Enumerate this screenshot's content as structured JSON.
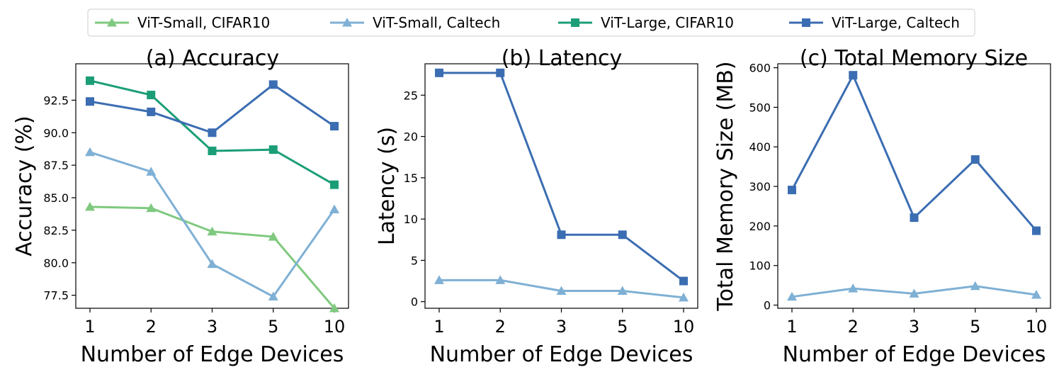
{
  "legend": {
    "placement": "top-center",
    "entries": [
      {
        "name": "ViT-Small, CIFAR10",
        "color": "#7fc97f",
        "marker": "triangle"
      },
      {
        "name": "ViT-Small, Caltech",
        "color": "#7fb0d5",
        "marker": "triangle"
      },
      {
        "name": "ViT-Large, CIFAR10",
        "color": "#1b9e77",
        "marker": "square"
      },
      {
        "name": "ViT-Large, Caltech",
        "color": "#3b6db2",
        "marker": "square"
      }
    ]
  },
  "chart_data": [
    {
      "type": "line",
      "title": "(a) Accuracy",
      "xlabel": "Number of Edge Devices",
      "ylabel": "Accuracy (%)",
      "categories": [
        "1",
        "2",
        "3",
        "5",
        "10"
      ],
      "ylim": [
        76.5,
        95.3
      ],
      "yticks": [
        77.5,
        80.0,
        82.5,
        85.0,
        87.5,
        90.0,
        92.5
      ],
      "ytick_labels": [
        "77.5",
        "80.0",
        "82.5",
        "85.0",
        "87.5",
        "90.0",
        "92.5"
      ],
      "series": [
        {
          "name": "ViT-Small, CIFAR10",
          "values": [
            84.3,
            84.2,
            82.4,
            82.0,
            76.5
          ]
        },
        {
          "name": "ViT-Small, Caltech",
          "values": [
            88.5,
            87.0,
            79.9,
            77.4,
            84.1
          ]
        },
        {
          "name": "ViT-Large, CIFAR10",
          "values": [
            94.0,
            92.9,
            88.6,
            88.7,
            86.0
          ]
        },
        {
          "name": "ViT-Large, Caltech",
          "values": [
            92.4,
            91.6,
            90.0,
            93.7,
            90.5
          ]
        }
      ]
    },
    {
      "type": "line",
      "title": "(b) Latency",
      "xlabel": "Number of Edge Devices",
      "ylabel": "Latency (s)",
      "categories": [
        "1",
        "2",
        "3",
        "5",
        "10"
      ],
      "ylim": [
        -0.8,
        28.8
      ],
      "yticks": [
        0,
        5,
        10,
        15,
        20,
        25
      ],
      "ytick_labels": [
        "0",
        "5",
        "10",
        "15",
        "20",
        "25"
      ],
      "series": [
        {
          "name": "ViT-Small, Caltech",
          "values": [
            2.6,
            2.6,
            1.3,
            1.3,
            0.5
          ]
        },
        {
          "name": "ViT-Large, Caltech",
          "values": [
            27.7,
            27.7,
            8.1,
            8.1,
            2.5
          ]
        }
      ]
    },
    {
      "type": "line",
      "title": "(c) Total Memory Size",
      "xlabel": "Number of Edge Devices",
      "ylabel": "Total Memory Size (MB)",
      "categories": [
        "1",
        "2",
        "3",
        "5",
        "10"
      ],
      "ylim": [
        -8,
        610
      ],
      "yticks": [
        0,
        100,
        200,
        300,
        400,
        500,
        600
      ],
      "ytick_labels": [
        "0",
        "100",
        "200",
        "300",
        "400",
        "500",
        "600"
      ],
      "series": [
        {
          "name": "ViT-Small, Caltech",
          "values": [
            21,
            42,
            29,
            48,
            26
          ]
        },
        {
          "name": "ViT-Large, Caltech",
          "values": [
            291,
            581,
            221,
            368,
            188
          ]
        }
      ]
    }
  ]
}
